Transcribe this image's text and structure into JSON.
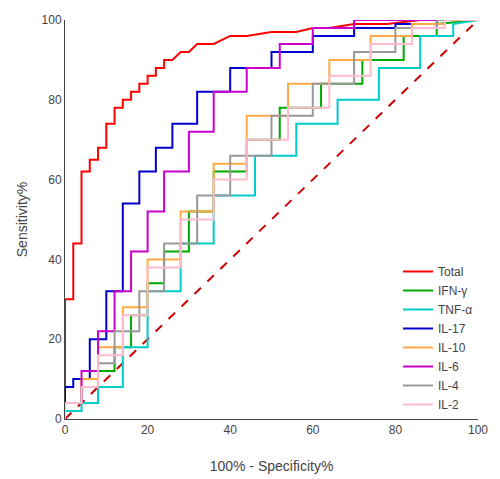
{
  "chart_data": {
    "type": "line",
    "xlabel": "100% - Specificity%",
    "ylabel": "Sensitivity%",
    "xlim": [
      0,
      100
    ],
    "ylim": [
      0,
      100
    ],
    "xticks": [
      0,
      20,
      40,
      60,
      80,
      100
    ],
    "yticks": [
      0,
      20,
      40,
      60,
      80,
      100
    ],
    "grid": false,
    "legend": "lower right",
    "series": [
      {
        "color": "#cc0000",
        "line_style": "dashed",
        "x": [
          0,
          100
        ],
        "values": [
          0,
          100
        ]
      },
      {
        "name": "Total",
        "color": "#ff0000",
        "x": [
          0,
          0,
          2,
          2,
          4,
          4,
          6,
          6,
          8,
          8,
          10,
          10,
          12,
          12,
          14,
          14,
          16,
          16,
          18,
          18,
          20,
          20,
          22,
          22,
          24,
          24,
          26,
          28,
          30,
          32,
          36,
          40,
          44,
          50,
          56,
          60,
          64,
          70,
          78,
          86,
          94,
          100
        ],
        "values": [
          0,
          30,
          30,
          44,
          44,
          62,
          62,
          65,
          65,
          68,
          68,
          74,
          74,
          78,
          78,
          80,
          80,
          82,
          82,
          84,
          84,
          86,
          86,
          88,
          88,
          90,
          90,
          92,
          92,
          94,
          94,
          96,
          96,
          97,
          97,
          98,
          98,
          99,
          99,
          100,
          100,
          100
        ]
      },
      {
        "name": "IFN-γ",
        "color": "#00aa00",
        "x": [
          0,
          0,
          4,
          4,
          8,
          8,
          12,
          12,
          16,
          16,
          20,
          20,
          24,
          24,
          30,
          30,
          36,
          36,
          44,
          44,
          52,
          52,
          62,
          62,
          72,
          72,
          82,
          82,
          90,
          90,
          100
        ],
        "values": [
          0,
          4,
          4,
          8,
          8,
          12,
          12,
          18,
          18,
          26,
          26,
          34,
          34,
          42,
          42,
          52,
          52,
          62,
          62,
          70,
          70,
          78,
          78,
          84,
          84,
          90,
          90,
          96,
          96,
          99,
          100
        ]
      },
      {
        "name": "TNF-α",
        "color": "#00cccc",
        "x": [
          0,
          0,
          4,
          4,
          8,
          8,
          14,
          14,
          20,
          20,
          28,
          28,
          36,
          36,
          46,
          46,
          56,
          56,
          66,
          66,
          76,
          76,
          86,
          86,
          94,
          94,
          100
        ],
        "values": [
          0,
          2,
          2,
          4,
          4,
          8,
          8,
          18,
          18,
          32,
          32,
          44,
          44,
          56,
          56,
          66,
          66,
          74,
          74,
          80,
          80,
          88,
          88,
          96,
          96,
          99,
          100
        ]
      },
      {
        "name": "IL-17",
        "color": "#0000cc",
        "x": [
          0,
          0,
          2,
          2,
          6,
          6,
          10,
          10,
          14,
          14,
          18,
          18,
          22,
          22,
          26,
          26,
          32,
          32,
          40,
          40,
          50,
          50,
          60,
          60,
          70,
          70,
          80,
          80,
          90,
          90,
          100
        ],
        "values": [
          0,
          8,
          8,
          10,
          10,
          20,
          20,
          32,
          32,
          54,
          54,
          62,
          62,
          68,
          68,
          74,
          74,
          82,
          82,
          88,
          88,
          92,
          92,
          96,
          96,
          98,
          98,
          99,
          99,
          100,
          100
        ]
      },
      {
        "name": "IL-10",
        "color": "#ffaa44",
        "x": [
          0,
          0,
          4,
          4,
          8,
          8,
          14,
          14,
          20,
          20,
          28,
          28,
          36,
          36,
          44,
          44,
          54,
          54,
          64,
          64,
          74,
          74,
          84,
          84,
          92,
          92,
          100
        ],
        "values": [
          0,
          4,
          4,
          10,
          10,
          18,
          18,
          28,
          28,
          40,
          40,
          52,
          52,
          64,
          64,
          76,
          76,
          84,
          84,
          90,
          90,
          96,
          96,
          99,
          99,
          100,
          100
        ]
      },
      {
        "name": "IL-6",
        "color": "#cc00cc",
        "x": [
          0,
          0,
          4,
          4,
          8,
          8,
          12,
          12,
          16,
          16,
          20,
          20,
          24,
          24,
          30,
          30,
          36,
          36,
          44,
          44,
          52,
          52,
          60,
          60,
          70,
          70,
          80,
          80,
          90,
          90,
          100
        ],
        "values": [
          0,
          4,
          4,
          12,
          12,
          22,
          22,
          32,
          32,
          42,
          42,
          52,
          52,
          62,
          62,
          72,
          72,
          82,
          82,
          88,
          88,
          94,
          94,
          98,
          98,
          100,
          100,
          100,
          100,
          100,
          100
        ]
      },
      {
        "name": "IL-4",
        "color": "#999999",
        "x": [
          0,
          0,
          4,
          4,
          8,
          8,
          12,
          12,
          18,
          18,
          24,
          24,
          32,
          32,
          40,
          40,
          50,
          50,
          60,
          60,
          70,
          70,
          80,
          80,
          90,
          90,
          100
        ],
        "values": [
          0,
          4,
          4,
          8,
          8,
          14,
          14,
          22,
          22,
          32,
          32,
          44,
          44,
          56,
          56,
          66,
          66,
          76,
          76,
          84,
          84,
          92,
          92,
          98,
          98,
          100,
          100
        ]
      },
      {
        "name": "IL-2",
        "color": "#ffbbcc",
        "x": [
          0,
          0,
          4,
          4,
          8,
          8,
          14,
          14,
          20,
          20,
          28,
          28,
          36,
          36,
          44,
          44,
          54,
          54,
          64,
          64,
          74,
          74,
          84,
          84,
          92,
          92,
          100
        ],
        "values": [
          0,
          4,
          4,
          8,
          8,
          16,
          16,
          26,
          26,
          38,
          38,
          50,
          50,
          60,
          60,
          70,
          70,
          78,
          78,
          86,
          86,
          94,
          94,
          98,
          98,
          100,
          100
        ]
      }
    ]
  }
}
